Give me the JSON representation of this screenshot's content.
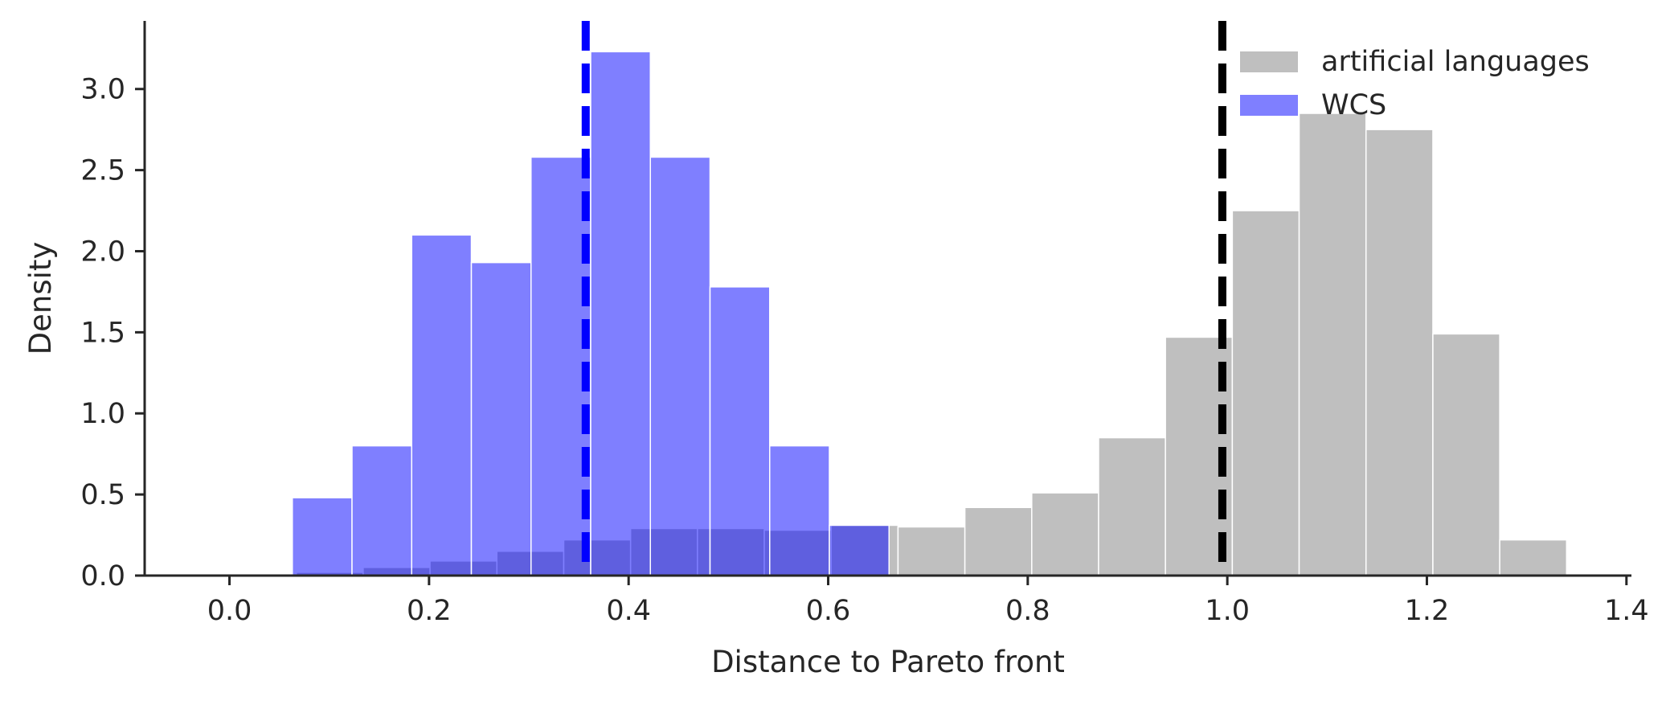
{
  "chart_data": {
    "type": "histogram",
    "title": "",
    "xlabel": "Distance to Pareto front",
    "ylabel": "Density",
    "xlim": [
      -0.085,
      1.405
    ],
    "ylim": [
      0,
      3.42
    ],
    "xticks": [
      0.0,
      0.2,
      0.4,
      0.6,
      0.8,
      1.0,
      1.2,
      1.4
    ],
    "xtick_labels": [
      "0.0",
      "0.2",
      "0.4",
      "0.6",
      "0.8",
      "1.0",
      "1.2",
      "1.4"
    ],
    "yticks": [
      0.0,
      0.5,
      1.0,
      1.5,
      2.0,
      2.5,
      3.0
    ],
    "ytick_labels": [
      "0.0",
      "0.5",
      "1.0",
      "1.5",
      "2.0",
      "2.5",
      "3.0"
    ],
    "grid": false,
    "legend_position": "top-right",
    "series": [
      {
        "name": "artificial languages",
        "color": "#bfbfbf",
        "opacity": 1.0,
        "bins": [
          {
            "x0": 0.067,
            "x1": 0.134,
            "density": 0.02
          },
          {
            "x0": 0.134,
            "x1": 0.201,
            "density": 0.05
          },
          {
            "x0": 0.201,
            "x1": 0.268,
            "density": 0.09
          },
          {
            "x0": 0.268,
            "x1": 0.335,
            "density": 0.15
          },
          {
            "x0": 0.335,
            "x1": 0.402,
            "density": 0.22
          },
          {
            "x0": 0.402,
            "x1": 0.469,
            "density": 0.29
          },
          {
            "x0": 0.469,
            "x1": 0.536,
            "density": 0.29
          },
          {
            "x0": 0.536,
            "x1": 0.603,
            "density": 0.28
          },
          {
            "x0": 0.603,
            "x1": 0.67,
            "density": 0.31
          },
          {
            "x0": 0.67,
            "x1": 0.737,
            "density": 0.3
          },
          {
            "x0": 0.737,
            "x1": 0.804,
            "density": 0.42
          },
          {
            "x0": 0.804,
            "x1": 0.871,
            "density": 0.51
          },
          {
            "x0": 0.871,
            "x1": 0.938,
            "density": 0.85
          },
          {
            "x0": 0.938,
            "x1": 1.005,
            "density": 1.47
          },
          {
            "x0": 1.005,
            "x1": 1.072,
            "density": 2.25
          },
          {
            "x0": 1.072,
            "x1": 1.139,
            "density": 2.85
          },
          {
            "x0": 1.139,
            "x1": 1.206,
            "density": 2.75
          },
          {
            "x0": 1.206,
            "x1": 1.273,
            "density": 1.49
          },
          {
            "x0": 1.273,
            "x1": 1.34,
            "density": 0.22
          }
        ],
        "mean_line": {
          "x": 0.995,
          "color": "#000000"
        }
      },
      {
        "name": "WCS",
        "color": "#0000ff",
        "opacity": 0.5,
        "bins": [
          {
            "x0": 0.063,
            "x1": 0.1228,
            "density": 0.48
          },
          {
            "x0": 0.1228,
            "x1": 0.1826,
            "density": 0.8
          },
          {
            "x0": 0.1826,
            "x1": 0.2424,
            "density": 2.1
          },
          {
            "x0": 0.2424,
            "x1": 0.3022,
            "density": 1.93
          },
          {
            "x0": 0.3022,
            "x1": 0.362,
            "density": 2.58
          },
          {
            "x0": 0.362,
            "x1": 0.4218,
            "density": 3.23
          },
          {
            "x0": 0.4218,
            "x1": 0.4816,
            "density": 2.58
          },
          {
            "x0": 0.4816,
            "x1": 0.5414,
            "density": 1.78
          },
          {
            "x0": 0.5414,
            "x1": 0.6012,
            "density": 0.8
          },
          {
            "x0": 0.6012,
            "x1": 0.661,
            "density": 0.31
          }
        ],
        "mean_line": {
          "x": 0.357,
          "color": "#0000ff"
        }
      }
    ]
  }
}
